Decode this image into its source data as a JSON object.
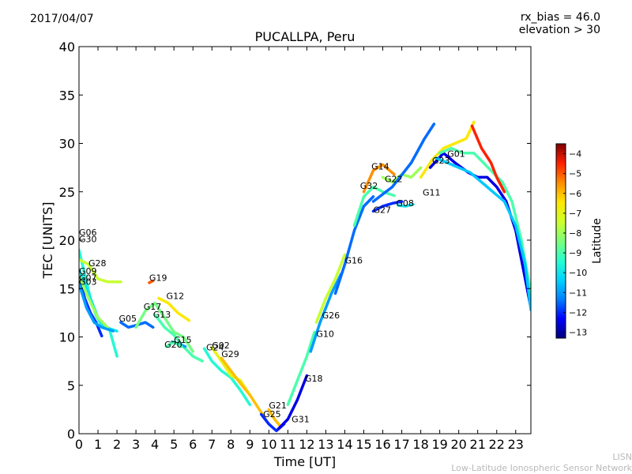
{
  "header": {
    "date": "2017/04/07",
    "bias": "rx_bias = 46.0",
    "elevation": "elevation > 30"
  },
  "footer": {
    "org": "LISN",
    "org_full": "Low-Latitude Ionospheric Sensor Network"
  },
  "chart_data": {
    "type": "scatter",
    "title": "PUCALLPA, Peru",
    "xlabel": "Time [UT]",
    "ylabel": "TEC [UNITS]",
    "xlim": [
      0,
      23.8
    ],
    "ylim": [
      0,
      40
    ],
    "xticks": [
      0,
      1,
      2,
      3,
      4,
      5,
      6,
      7,
      8,
      9,
      10,
      11,
      12,
      13,
      14,
      15,
      16,
      17,
      18,
      19,
      20,
      21,
      22,
      23
    ],
    "yticks": [
      0,
      5,
      10,
      15,
      20,
      25,
      30,
      35,
      40
    ],
    "colorbar": {
      "label": "Latitude",
      "range": [
        -13.3,
        -3.5
      ],
      "ticks": [
        -4,
        -5,
        -6,
        -7,
        -8,
        -9,
        -10,
        -11,
        -12,
        -13
      ],
      "colors": [
        "#00007f",
        "#0000ff",
        "#0080ff",
        "#00d4ff",
        "#29ffce",
        "#7dff7a",
        "#ceff29",
        "#ffe600",
        "#ff8c00",
        "#ff1e00",
        "#7f0000"
      ]
    },
    "series": [
      {
        "name": "G06",
        "label_at": [
          0,
          20.5
        ],
        "lat": -12.0,
        "points": [
          [
            0.0,
            16.2
          ],
          [
            0.3,
            14.0
          ],
          [
            0.6,
            12.5
          ],
          [
            0.9,
            11.5
          ],
          [
            1.2,
            10.1
          ]
        ]
      },
      {
        "name": "G30",
        "label_at": [
          0,
          19.8
        ],
        "lat": -9.5,
        "points": [
          [
            0.0,
            19.0
          ],
          [
            0.3,
            16.5
          ],
          [
            0.6,
            14.0
          ],
          [
            0.9,
            12.2
          ],
          [
            1.2,
            11.2
          ],
          [
            1.6,
            10.8
          ],
          [
            2.0,
            8.0
          ]
        ]
      },
      {
        "name": "G28",
        "label_at": [
          0.5,
          17.3
        ],
        "lat": -7.5,
        "points": [
          [
            0.0,
            18.0
          ],
          [
            0.5,
            17.5
          ],
          [
            1.0,
            16.0
          ],
          [
            1.5,
            15.7
          ],
          [
            2.2,
            15.7
          ]
        ]
      },
      {
        "name": "G09",
        "label_at": [
          0,
          16.5
        ],
        "lat": -10.0,
        "points": [
          [
            0.0,
            17.0
          ],
          [
            0.5,
            14.5
          ],
          [
            1.0,
            12.0
          ],
          [
            1.4,
            11.0
          ],
          [
            2.0,
            10.6
          ]
        ]
      },
      {
        "name": "G07",
        "label_at": [
          0,
          15.8
        ],
        "lat": -8.0,
        "points": [
          [
            0.0,
            16.3
          ],
          [
            0.5,
            14.0
          ],
          [
            1.0,
            12.0
          ],
          [
            1.5,
            11.0
          ]
        ]
      },
      {
        "name": "G03",
        "label_at": [
          0,
          15.4
        ],
        "lat": -11.0,
        "points": [
          [
            0.0,
            15.5
          ],
          [
            0.4,
            13.0
          ],
          [
            0.8,
            11.5
          ],
          [
            1.2,
            11.0
          ],
          [
            1.8,
            10.6
          ]
        ]
      },
      {
        "name": "G05",
        "label_at": [
          2.1,
          11.6
        ],
        "lat": -11.5,
        "points": [
          [
            2.2,
            11.5
          ],
          [
            2.6,
            11.0
          ],
          [
            3.0,
            11.2
          ],
          [
            3.5,
            11.5
          ],
          [
            3.9,
            11.0
          ]
        ]
      },
      {
        "name": "G19",
        "label_at": [
          3.7,
          15.8
        ],
        "lat": -5.0,
        "points": [
          [
            3.7,
            15.6
          ],
          [
            3.9,
            15.8
          ]
        ]
      },
      {
        "name": "G17",
        "label_at": [
          3.4,
          12.8
        ],
        "lat": -8.5,
        "points": [
          [
            3.0,
            11.0
          ],
          [
            3.5,
            12.7
          ],
          [
            4.0,
            13.5
          ],
          [
            4.5,
            12.0
          ],
          [
            5.0,
            10.5
          ],
          [
            5.5,
            10.0
          ],
          [
            6.0,
            8.5
          ]
        ]
      },
      {
        "name": "G12",
        "label_at": [
          4.6,
          13.9
        ],
        "lat": -6.5,
        "points": [
          [
            4.2,
            14.0
          ],
          [
            4.7,
            13.5
          ],
          [
            5.2,
            12.5
          ],
          [
            5.8,
            11.7
          ]
        ]
      },
      {
        "name": "G13",
        "label_at": [
          3.9,
          12.0
        ],
        "lat": -9.0,
        "points": [
          [
            4.0,
            12.3
          ],
          [
            4.5,
            11.0
          ],
          [
            5.0,
            10.2
          ],
          [
            5.5,
            9.0
          ],
          [
            6.0,
            8.0
          ],
          [
            6.5,
            7.5
          ]
        ]
      },
      {
        "name": "G15",
        "label_at": [
          5.0,
          9.4
        ],
        "lat": -11.0,
        "points": [
          [
            4.9,
            9.5
          ],
          [
            5.2,
            9.3
          ],
          [
            5.6,
            9.0
          ]
        ]
      },
      {
        "name": "G20",
        "label_at": [
          4.5,
          8.9
        ],
        "lat": -9.0,
        "points": [
          [
            4.6,
            9.0
          ],
          [
            5.0,
            9.5
          ],
          [
            5.4,
            9.0
          ]
        ]
      },
      {
        "name": "G24",
        "label_at": [
          6.7,
          8.6
        ],
        "lat": -9.5,
        "points": [
          [
            6.6,
            8.8
          ],
          [
            7.0,
            7.5
          ],
          [
            7.5,
            6.5
          ],
          [
            8.0,
            5.8
          ],
          [
            8.5,
            4.5
          ],
          [
            9.0,
            3.0
          ]
        ]
      },
      {
        "name": "G02",
        "label_at": [
          7.0,
          8.8
        ],
        "lat": -7.0,
        "points": [
          [
            7.0,
            8.9
          ],
          [
            7.5,
            7.5
          ],
          [
            8.0,
            6.0
          ],
          [
            8.5,
            5.5
          ],
          [
            9.0,
            4.0
          ]
        ]
      },
      {
        "name": "G29",
        "label_at": [
          7.5,
          7.9
        ],
        "lat": -6.0,
        "points": [
          [
            7.5,
            7.8
          ],
          [
            8.0,
            6.5
          ],
          [
            8.5,
            5.2
          ],
          [
            9.0,
            4.0
          ],
          [
            9.5,
            2.5
          ],
          [
            10.0,
            1.0
          ]
        ]
      },
      {
        "name": "G21",
        "label_at": [
          10.0,
          2.6
        ],
        "lat": -6.0,
        "points": [
          [
            10.0,
            2.5
          ],
          [
            10.3,
            1.5
          ],
          [
            10.6,
            0.8
          ]
        ]
      },
      {
        "name": "G25",
        "label_at": [
          9.7,
          1.7
        ],
        "lat": -12.0,
        "points": [
          [
            9.6,
            2.0
          ],
          [
            10.0,
            1.0
          ],
          [
            10.4,
            0.3
          ],
          [
            10.8,
            1.0
          ]
        ]
      },
      {
        "name": "G31",
        "label_at": [
          11.2,
          1.2
        ],
        "lat": -12.5,
        "points": [
          [
            10.5,
            0.5
          ],
          [
            11.0,
            1.5
          ],
          [
            11.5,
            3.5
          ],
          [
            12.0,
            6.0
          ]
        ]
      },
      {
        "name": "G18",
        "label_at": [
          11.9,
          5.4
        ],
        "lat": -9.0,
        "points": [
          [
            11.0,
            3.0
          ],
          [
            11.5,
            5.5
          ],
          [
            12.0,
            8.0
          ],
          [
            12.4,
            10.5
          ]
        ]
      },
      {
        "name": "G10",
        "label_at": [
          12.5,
          10.0
        ],
        "lat": -11.0,
        "points": [
          [
            12.2,
            8.5
          ],
          [
            12.7,
            11.5
          ],
          [
            13.3,
            14.5
          ],
          [
            13.8,
            16.5
          ]
        ]
      },
      {
        "name": "G26",
        "label_at": [
          12.8,
          11.9
        ],
        "lat": -7.5,
        "points": [
          [
            12.5,
            11.5
          ],
          [
            13.0,
            14.0
          ],
          [
            13.5,
            16.0
          ],
          [
            14.0,
            18.5
          ]
        ]
      },
      {
        "name": "G16",
        "label_at": [
          14.0,
          17.6
        ],
        "lat": -11.5,
        "points": [
          [
            13.5,
            14.5
          ],
          [
            14.0,
            17.5
          ],
          [
            14.5,
            21.0
          ],
          [
            15.0,
            23.5
          ],
          [
            15.5,
            24.5
          ]
        ]
      },
      {
        "name": "G32",
        "label_at": [
          14.8,
          25.3
        ],
        "lat": -9.0,
        "points": [
          [
            14.5,
            21.5
          ],
          [
            15.0,
            24.5
          ],
          [
            15.5,
            25.5
          ],
          [
            16.0,
            25.0
          ],
          [
            16.6,
            24.6
          ]
        ]
      },
      {
        "name": "G14",
        "label_at": [
          15.4,
          27.3
        ],
        "lat": -5.5,
        "points": [
          [
            15.0,
            25.0
          ],
          [
            15.5,
            27.2
          ],
          [
            16.0,
            27.8
          ],
          [
            16.6,
            26.8
          ]
        ]
      },
      {
        "name": "G22",
        "label_at": [
          16.1,
          26.0
        ],
        "lat": -8.0,
        "points": [
          [
            16.0,
            26.5
          ],
          [
            16.5,
            26.0
          ],
          [
            17.0,
            26.8
          ],
          [
            17.5,
            26.5
          ],
          [
            18.0,
            27.5
          ]
        ]
      },
      {
        "name": "G27",
        "label_at": [
          15.5,
          22.8
        ],
        "lat": -12.0,
        "points": [
          [
            15.5,
            23.0
          ],
          [
            16.0,
            23.5
          ],
          [
            16.5,
            23.8
          ],
          [
            17.0,
            24.0
          ]
        ]
      },
      {
        "name": "G08",
        "label_at": [
          16.7,
          23.5
        ],
        "lat": -10.0,
        "points": [
          [
            16.8,
            23.6
          ],
          [
            17.2,
            23.5
          ],
          [
            17.6,
            23.7
          ]
        ]
      },
      {
        "name": "G11",
        "label_at": [
          18.1,
          24.6
        ],
        "lat": -11.5,
        "points": [
          [
            15.5,
            24.0
          ],
          [
            16.5,
            25.5
          ],
          [
            17.5,
            28.0
          ],
          [
            18.2,
            30.5
          ],
          [
            18.7,
            32.0
          ]
        ]
      },
      {
        "name": "G23",
        "label_at": [
          18.6,
          27.9
        ],
        "lat": -6.5,
        "points": [
          [
            18.0,
            26.5
          ],
          [
            18.6,
            28.3
          ],
          [
            19.2,
            29.5
          ],
          [
            19.8,
            30.0
          ],
          [
            20.4,
            30.5
          ],
          [
            20.8,
            32.2
          ]
        ]
      },
      {
        "name": "G01",
        "label_at": [
          19.4,
          28.6
        ],
        "lat": -12.5,
        "points": [
          [
            18.5,
            27.5
          ],
          [
            19.2,
            29.0
          ],
          [
            19.8,
            28.0
          ],
          [
            20.5,
            27.0
          ],
          [
            21.0,
            26.5
          ],
          [
            21.5,
            26.5
          ],
          [
            22.0,
            25.5
          ],
          [
            22.5,
            24.0
          ],
          [
            23.0,
            21.0
          ],
          [
            23.4,
            17.0
          ],
          [
            23.8,
            13.0
          ]
        ]
      },
      {
        "name": "",
        "label_at": null,
        "lat": -9.0,
        "points": [
          [
            19.0,
            29.0
          ],
          [
            19.6,
            29.5
          ],
          [
            20.2,
            29.0
          ],
          [
            20.8,
            29.0
          ],
          [
            21.3,
            28.0
          ],
          [
            21.8,
            27.0
          ],
          [
            22.3,
            26.0
          ],
          [
            22.8,
            24.0
          ],
          [
            23.3,
            20.0
          ],
          [
            23.8,
            14.5
          ]
        ]
      },
      {
        "name": "",
        "label_at": null,
        "lat": -4.5,
        "points": [
          [
            20.7,
            31.8
          ],
          [
            21.2,
            29.5
          ],
          [
            21.7,
            28.0
          ],
          [
            22.0,
            26.5
          ],
          [
            22.4,
            25.0
          ]
        ]
      },
      {
        "name": "",
        "label_at": null,
        "lat": -10.5,
        "points": [
          [
            18.8,
            28.5
          ],
          [
            19.4,
            28.0
          ],
          [
            20.0,
            27.5
          ],
          [
            20.6,
            27.0
          ],
          [
            21.2,
            26.0
          ],
          [
            21.8,
            25.0
          ],
          [
            22.4,
            24.0
          ],
          [
            23.0,
            21.5
          ],
          [
            23.5,
            17.5
          ],
          [
            23.8,
            12.8
          ]
        ]
      }
    ]
  }
}
